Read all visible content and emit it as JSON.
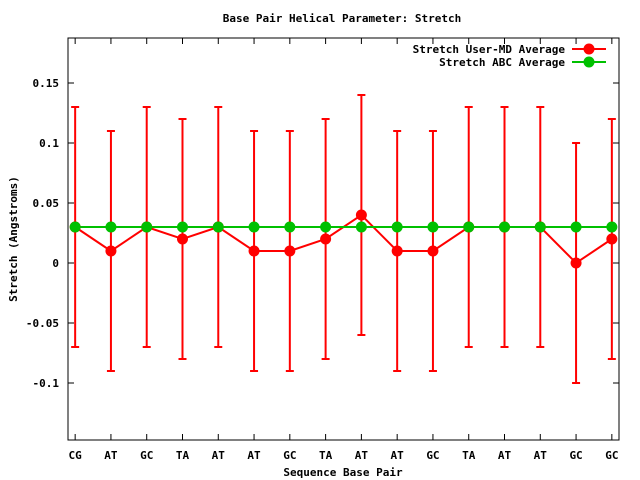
{
  "chart_data": {
    "type": "line",
    "title": "Base Pair Helical Parameter: Stretch",
    "xlabel": "Sequence Base Pair",
    "ylabel": "Stretch (Angstroms)",
    "categories": [
      "CG",
      "AT",
      "GC",
      "TA",
      "AT",
      "AT",
      "GC",
      "TA",
      "AT",
      "AT",
      "GC",
      "TA",
      "AT",
      "AT",
      "GC",
      "GC"
    ],
    "xlim": [
      -0.2,
      15.2
    ],
    "ylim": [
      -0.1475,
      0.1875
    ],
    "yticks": [
      -0.1,
      -0.05,
      0,
      0.05,
      0.1,
      0.15
    ],
    "ytick_labels": [
      "-0.1",
      "-0.05",
      "0",
      "0.05",
      "0.1",
      "0.15"
    ],
    "grid": false,
    "legend_position": "top-right",
    "series": [
      {
        "name": "Stretch User-MD Average",
        "color": "#ff0000",
        "values": [
          0.03,
          0.01,
          0.03,
          0.02,
          0.03,
          0.01,
          0.01,
          0.02,
          0.04,
          0.01,
          0.01,
          0.03,
          0.03,
          0.03,
          0.0,
          0.02
        ],
        "error": [
          0.1,
          0.1,
          0.1,
          0.1,
          0.1,
          0.1,
          0.1,
          0.1,
          0.1,
          0.1,
          0.1,
          0.1,
          0.1,
          0.1,
          0.1,
          0.1
        ]
      },
      {
        "name": "Stretch ABC Average",
        "color": "#00c000",
        "values": [
          0.03,
          0.03,
          0.03,
          0.03,
          0.03,
          0.03,
          0.03,
          0.03,
          0.03,
          0.03,
          0.03,
          0.03,
          0.03,
          0.03,
          0.03,
          0.03
        ]
      }
    ]
  }
}
